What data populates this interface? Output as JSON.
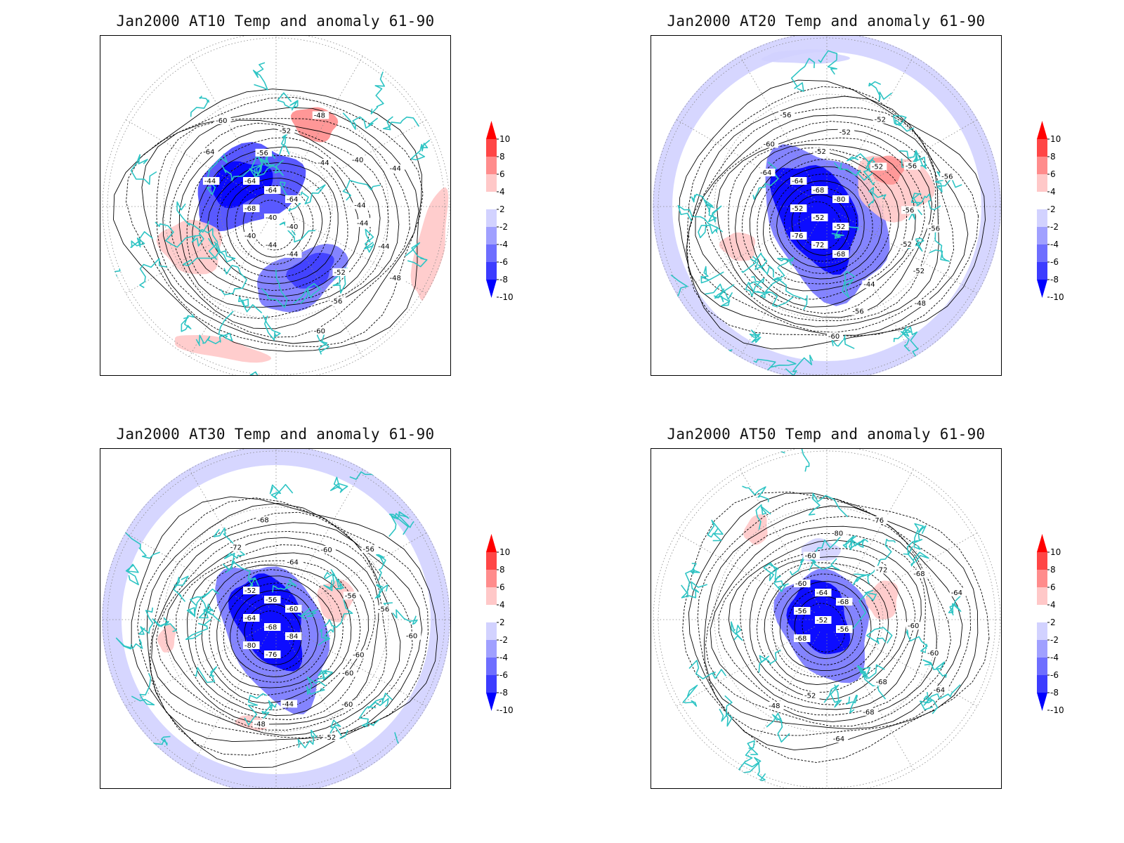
{
  "figure": {
    "panels": [
      {
        "title": "Jan2000 AT10 Temp and anomaly 61-90",
        "contour_labels": [
          "-44",
          "-44",
          "-48",
          "-52",
          "-56",
          "-60",
          "-64",
          "-64",
          "-64",
          "-68",
          "-40",
          "-40",
          "-40",
          "-44",
          "-44",
          "-44",
          "-64",
          "-60",
          "-56",
          "-52",
          "-48",
          "-44",
          "-40",
          "-44",
          "-44"
        ],
        "anomaly_regions": [
          {
            "kind": "cold",
            "level": -10,
            "desc": "over North America / Hudson Bay"
          },
          {
            "kind": "cold",
            "level": -8,
            "desc": "over Scandinavia / Europe"
          },
          {
            "kind": "warm",
            "level": 4,
            "desc": "over eastern Siberia"
          },
          {
            "kind": "warm",
            "level": 2,
            "desc": "North Pacific / Atlantic band"
          }
        ]
      },
      {
        "title": "Jan2000 AT20 Temp and anomaly 61-90",
        "contour_labels": [
          "-52",
          "-52",
          "-48",
          "-44",
          "-56",
          "-60",
          "-64",
          "-68",
          "-80",
          "-52",
          "-52",
          "-52",
          "-76",
          "-72",
          "-68",
          "-64",
          "-60",
          "-56",
          "-52",
          "-52",
          "-52",
          "-52",
          "-56",
          "-56",
          "-56",
          "-56"
        ],
        "anomaly_regions": [
          {
            "kind": "cold",
            "level": -10,
            "desc": "centred near pole / Greenland"
          },
          {
            "kind": "warm",
            "level": 4,
            "desc": "over Siberia"
          },
          {
            "kind": "cold",
            "level": -2,
            "desc": "outer ring"
          }
        ]
      },
      {
        "title": "Jan2000 AT30 Temp and anomaly 61-90",
        "contour_labels": [
          "-60",
          "-60",
          "-52",
          "-44",
          "-48",
          "-52",
          "-56",
          "-60",
          "-64",
          "-68",
          "-84",
          "-80",
          "-76",
          "-72",
          "-68",
          "-64",
          "-60",
          "-56",
          "-56",
          "-56",
          "-60",
          "-60"
        ],
        "anomaly_regions": [
          {
            "kind": "cold",
            "level": -10,
            "desc": "centred near Greenland"
          },
          {
            "kind": "warm",
            "level": 2,
            "desc": "over Siberia"
          },
          {
            "kind": "cold",
            "level": -2,
            "desc": "outer ring"
          }
        ]
      },
      {
        "title": "Jan2000 AT50 Temp and anomaly 61-90",
        "contour_labels": [
          "-68",
          "-68",
          "-64",
          "-52",
          "-48",
          "-60",
          "-64",
          "-68",
          "-56",
          "-52",
          "-56",
          "-68",
          "-60",
          "-80",
          "-76",
          "-72",
          "-68",
          "-64",
          "-60",
          "-60",
          "-64"
        ],
        "anomaly_regions": [
          {
            "kind": "cold",
            "level": -10,
            "desc": "centred near Greenland"
          },
          {
            "kind": "warm",
            "level": 2,
            "desc": "over Siberia and North Pacific"
          }
        ]
      }
    ],
    "colorbar": {
      "levels": [
        "10",
        "8",
        "6",
        "4",
        "2",
        "-2",
        "-4",
        "-6",
        "-8",
        "-10"
      ],
      "colors": [
        "#ff0000",
        "#ff4646",
        "#ff8c8c",
        "#ffc8c8",
        "#ffffff",
        "#d2d2ff",
        "#a0a0ff",
        "#6e6eff",
        "#3c3cff",
        "#0000ff"
      ]
    },
    "colors": {
      "coastline": "#2ec4c4",
      "contour": "#000000",
      "grid": "#888888"
    }
  }
}
